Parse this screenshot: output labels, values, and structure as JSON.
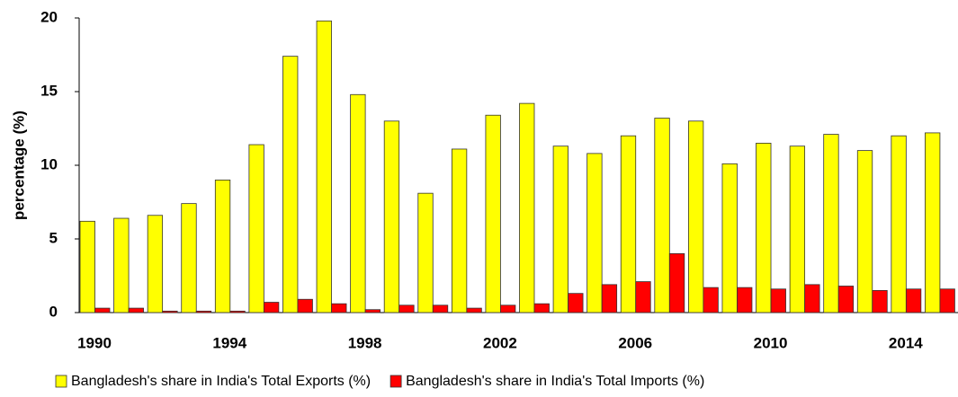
{
  "chart_data": {
    "type": "bar",
    "y_label": "percentage (%)",
    "categories": [
      "1990",
      null,
      null,
      null,
      "1994",
      null,
      null,
      null,
      "1998",
      null,
      null,
      null,
      "2002",
      null,
      null,
      null,
      "2006",
      null,
      null,
      null,
      "2010",
      null,
      null,
      null,
      "2014",
      null
    ],
    "series": [
      {
        "name": "Bangladesh's share in India's Total Exports (%)",
        "color": "#ffff00",
        "values": [
          6.2,
          6.4,
          6.6,
          7.4,
          9.0,
          11.4,
          17.4,
          19.8,
          14.8,
          13.0,
          8.1,
          11.1,
          13.4,
          14.2,
          11.3,
          10.8,
          12.0,
          13.2,
          13.0,
          10.1,
          11.5,
          11.3,
          12.1,
          11.0,
          12.0,
          12.2
        ]
      },
      {
        "name": "Bangladesh's share in India's Total Imports (%)",
        "color": "#ff0000",
        "values": [
          0.3,
          0.3,
          0.1,
          0.1,
          0.1,
          0.7,
          0.9,
          0.6,
          0.2,
          0.5,
          0.5,
          0.3,
          0.5,
          0.6,
          1.3,
          1.9,
          2.1,
          4.0,
          1.7,
          1.7,
          1.6,
          1.9,
          1.8,
          1.5,
          1.6,
          1.6
        ]
      }
    ],
    "ylim": [
      0,
      20
    ],
    "yticks": [
      0,
      5,
      10,
      15,
      20
    ],
    "grid": false,
    "legend": "bottom"
  }
}
